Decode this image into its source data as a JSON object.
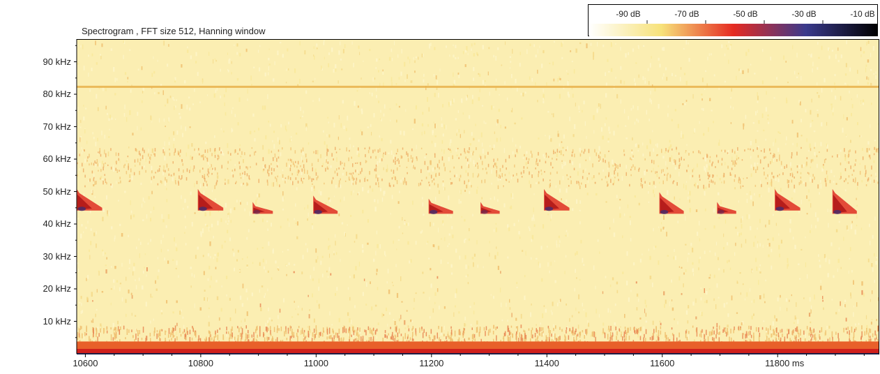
{
  "chart_data": {
    "type": "heatmap",
    "title": "Spectrogram , FFT size 512, Hanning window",
    "xlabel": "",
    "ylabel": "",
    "x_unit": "ms",
    "y_unit": "kHz",
    "xlim": [
      10585,
      11975
    ],
    "ylim": [
      0,
      97
    ],
    "x_ticks": [
      {
        "value": 10600,
        "label": "10600"
      },
      {
        "value": 10800,
        "label": "10800"
      },
      {
        "value": 11000,
        "label": "11000"
      },
      {
        "value": 11200,
        "label": "11200"
      },
      {
        "value": 11400,
        "label": "11400"
      },
      {
        "value": 11600,
        "label": "11600"
      },
      {
        "value": 11800,
        "label": "11800 ms"
      }
    ],
    "y_ticks": [
      {
        "value": 10,
        "label": "10 kHz"
      },
      {
        "value": 20,
        "label": "20 kHz"
      },
      {
        "value": 30,
        "label": "30 kHz"
      },
      {
        "value": 40,
        "label": "40 kHz"
      },
      {
        "value": 50,
        "label": "50 kHz"
      },
      {
        "value": 60,
        "label": "60 kHz"
      },
      {
        "value": 70,
        "label": "70 kHz"
      },
      {
        "value": 80,
        "label": "80 kHz"
      },
      {
        "value": 90,
        "label": "90 kHz"
      }
    ],
    "colorbar": {
      "labels": [
        "-90 dB",
        "-70 dB",
        "-50 dB",
        "-30 dB",
        "-10 dB"
      ],
      "range_db": [
        -100,
        0
      ],
      "colors": [
        "#ffffff",
        "#f7e27a",
        "#e52a22",
        "#3a3a8c",
        "#000000"
      ]
    },
    "tonal_band_khz": 82.5,
    "low_frequency_noise_khz": [
      0,
      2
    ],
    "calls": [
      {
        "t": 10585,
        "f_start": 51,
        "f_end": 45,
        "intensity": 0.95
      },
      {
        "t": 10795,
        "f_start": 51,
        "f_end": 45,
        "intensity": 0.95
      },
      {
        "t": 10890,
        "f_start": 47,
        "f_end": 44,
        "intensity": 0.7
      },
      {
        "t": 10995,
        "f_start": 49,
        "f_end": 44,
        "intensity": 0.9
      },
      {
        "t": 11195,
        "f_start": 48,
        "f_end": 44,
        "intensity": 0.9
      },
      {
        "t": 11285,
        "f_start": 47,
        "f_end": 44,
        "intensity": 0.65
      },
      {
        "t": 11395,
        "f_start": 51,
        "f_end": 45,
        "intensity": 0.95
      },
      {
        "t": 11595,
        "f_start": 50,
        "f_end": 44,
        "intensity": 0.9
      },
      {
        "t": 11695,
        "f_start": 47,
        "f_end": 44,
        "intensity": 0.65
      },
      {
        "t": 11795,
        "f_start": 51,
        "f_end": 45,
        "intensity": 0.95
      },
      {
        "t": 11895,
        "f_start": 51,
        "f_end": 44,
        "intensity": 0.9
      }
    ],
    "grid": false
  }
}
